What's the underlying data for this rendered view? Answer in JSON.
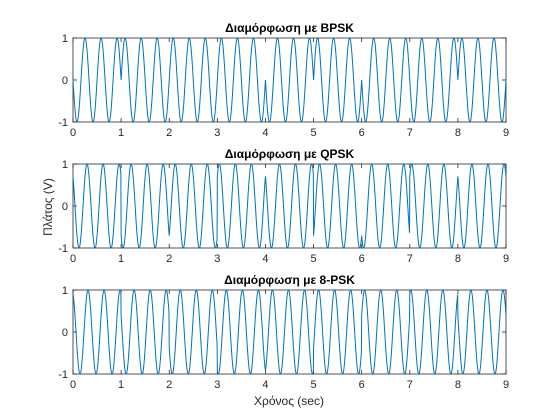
{
  "chart_data": [
    {
      "type": "line",
      "title": "Διαμόρφωση με BPSK",
      "xlabel": "",
      "ylabel": "",
      "xlim": [
        0,
        9
      ],
      "ylim": [
        -1,
        1
      ],
      "xticks": [
        "0",
        "1",
        "2",
        "3",
        "4",
        "5",
        "6",
        "7",
        "8",
        "9"
      ],
      "yticks": [
        "1",
        "0",
        "-1"
      ],
      "grid": false,
      "series": [
        {
          "color": "#0072bd",
          "carrier_cycles_per_sec": 3,
          "symbol_duration_sec": 1,
          "phases_rad": [
            1.5708,
            4.7124,
            4.7124,
            4.7124,
            1.5708,
            4.7124,
            1.5708,
            1.5708,
            4.7124
          ]
        }
      ]
    },
    {
      "type": "line",
      "title": "Διαμόρφωση με QPSK",
      "xlabel": "",
      "ylabel": "Πλάτος (V)",
      "xlim": [
        0,
        9
      ],
      "ylim": [
        -1,
        1
      ],
      "xticks": [
        "0",
        "1",
        "2",
        "3",
        "4",
        "5",
        "6",
        "7",
        "8",
        "9"
      ],
      "yticks": [
        "1",
        "0",
        "-1"
      ],
      "grid": false,
      "series": [
        {
          "color": "#0072bd",
          "carrier_cycles_per_sec": 3,
          "symbol_duration_sec": 1,
          "phases_rad": [
            0.7854,
            2.3562,
            3.927,
            5.4978,
            0.7854,
            3.927,
            2.3562,
            5.4978,
            0.7854
          ]
        }
      ]
    },
    {
      "type": "line",
      "title": "Διαμόρφωση με 8-PSK",
      "xlabel": "Χρόνος (sec)",
      "ylabel": "",
      "xlim": [
        0,
        9
      ],
      "ylim": [
        -1,
        1
      ],
      "xticks": [
        "0",
        "1",
        "2",
        "3",
        "4",
        "5",
        "6",
        "7",
        "8",
        "9"
      ],
      "yticks": [
        "1",
        "0",
        "-1"
      ],
      "grid": false,
      "series": [
        {
          "color": "#0072bd",
          "carrier_cycles_per_sec": 3,
          "symbol_duration_sec": 1,
          "phases_rad": [
            0.3927,
            1.1781,
            1.9635,
            2.7489,
            3.5343,
            4.3197,
            5.1051,
            5.8905,
            1.1781
          ]
        }
      ]
    }
  ]
}
